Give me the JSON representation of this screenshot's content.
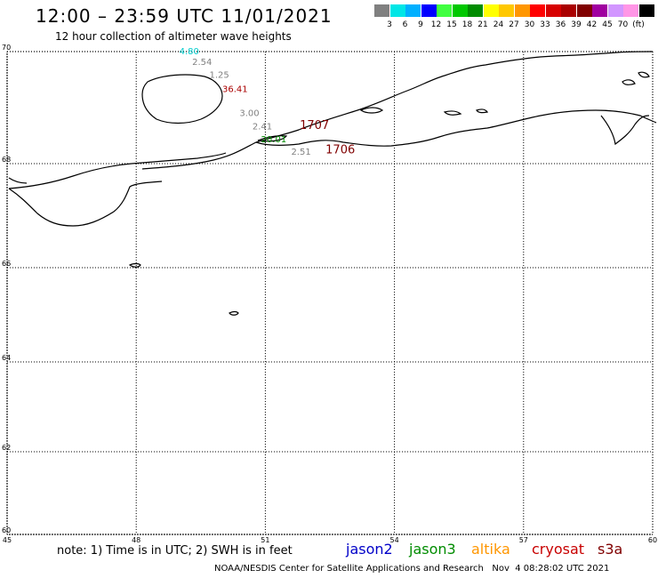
{
  "header": {
    "title": "12:00 – 23:59 UTC 11/01/2021",
    "subtitle": "12 hour collection of altimeter wave heights"
  },
  "colorbar": {
    "swatches": [
      "#808080",
      "#00e6e6",
      "#00b0ff",
      "#0000ff",
      "#40ff40",
      "#00c800",
      "#008c00",
      "#ffff00",
      "#ffc800",
      "#ff9600",
      "#ff0000",
      "#d70000",
      "#aa0000",
      "#800000",
      "#a000a0",
      "#d296ff",
      "#ff96e6",
      "#000000"
    ],
    "labels": [
      "3",
      "6",
      "9",
      "12",
      "15",
      "18",
      "21",
      "24",
      "27",
      "30",
      "33",
      "36",
      "39",
      "42",
      "45",
      "70",
      "(ft)"
    ]
  },
  "map": {
    "lon_ticks": [
      "45",
      "48",
      "51",
      "54",
      "57",
      "60"
    ],
    "lat_ticks": [
      "70",
      "68",
      "66",
      "64",
      "62",
      "60"
    ],
    "observations": [
      {
        "lon": 49.0,
        "lat": 69.95,
        "value": "4.80",
        "color": "#00cccc"
      },
      {
        "lon": 49.3,
        "lat": 69.76,
        "value": "2.54",
        "color": "#808080"
      },
      {
        "lon": 49.7,
        "lat": 69.53,
        "value": "1.25",
        "color": "#808080"
      },
      {
        "lon": 50.0,
        "lat": 69.28,
        "value": "36.41",
        "color": "#aa0000"
      },
      {
        "lon": 50.4,
        "lat": 68.85,
        "value": "3.00",
        "color": "#808080"
      },
      {
        "lon": 50.7,
        "lat": 68.61,
        "value": "2.41",
        "color": "#808080"
      },
      {
        "lon": 50.9,
        "lat": 68.38,
        "value": "20.01",
        "color": "#008c00"
      },
      {
        "lon": 51.6,
        "lat": 68.16,
        "value": "2.51",
        "color": "#808080"
      }
    ],
    "pass_labels": [
      {
        "lon": 51.8,
        "lat": 68.62,
        "text": "1707",
        "color": "#800000"
      },
      {
        "lon": 52.4,
        "lat": 68.18,
        "text": "1706",
        "color": "#800000"
      }
    ]
  },
  "footer": {
    "note": "note: 1) Time is in UTC; 2) SWH is in feet",
    "missions": [
      {
        "name": "jason2",
        "color": "#0000c8"
      },
      {
        "name": "jason3",
        "color": "#008c00"
      },
      {
        "name": "altika",
        "color": "#ff9600"
      },
      {
        "name": "cryosat",
        "color": "#c80000"
      },
      {
        "name": "s3a",
        "color": "#800000"
      }
    ],
    "credit": "NOAA/NESDIS Center for Satellite Applications and Research   Nov  4 08:28:02 UTC 2021"
  }
}
